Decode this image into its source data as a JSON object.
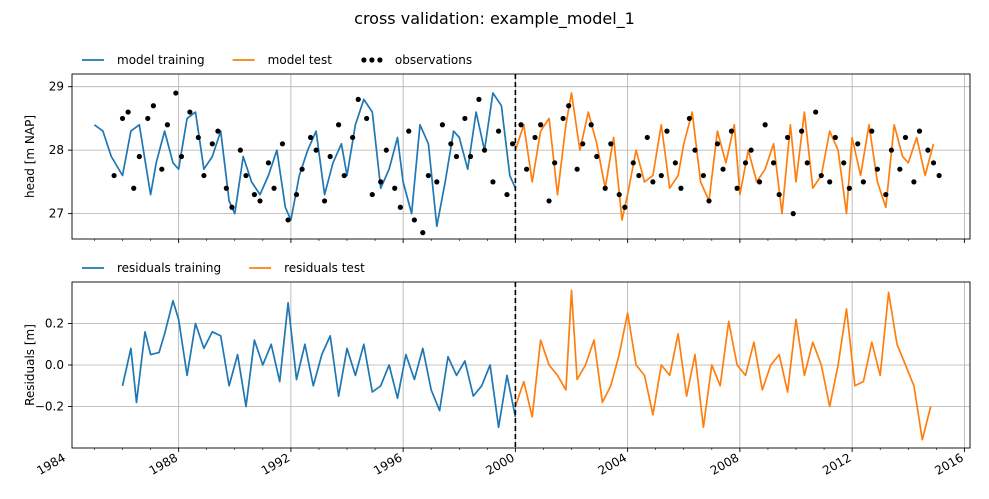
{
  "figure": {
    "title": "cross validation: example_model_1"
  },
  "chart_data": [
    {
      "type": "line",
      "panel": "top",
      "ylabel": "head [m NAP]",
      "xlabel": "",
      "xlim": [
        1984.2,
        2016.2
      ],
      "ylim": [
        26.6,
        29.2
      ],
      "yticks": [
        27,
        28,
        29
      ],
      "grid": true,
      "legend": "top-left, outside",
      "split_year": 2000,
      "series": [
        {
          "name": "model training",
          "color": "#1f77b4",
          "style": "line",
          "x": [
            1985.0,
            1985.3,
            1985.6,
            1986.0,
            1986.3,
            1986.6,
            1987.0,
            1987.2,
            1987.5,
            1987.8,
            1988.0,
            1988.3,
            1988.6,
            1988.9,
            1989.2,
            1989.5,
            1989.8,
            1990.0,
            1990.3,
            1990.6,
            1990.9,
            1991.2,
            1991.5,
            1991.8,
            1992.0,
            1992.3,
            1992.6,
            1992.9,
            1993.2,
            1993.5,
            1993.8,
            1994.0,
            1994.3,
            1994.6,
            1994.9,
            1995.2,
            1995.5,
            1995.8,
            1996.0,
            1996.3,
            1996.6,
            1996.9,
            1997.2,
            1997.5,
            1997.8,
            1998.0,
            1998.3,
            1998.6,
            1998.9,
            1999.2,
            1999.5,
            1999.8,
            2000.0
          ],
          "y": [
            28.4,
            28.3,
            27.9,
            27.6,
            28.3,
            28.4,
            27.3,
            27.8,
            28.3,
            27.8,
            27.7,
            28.5,
            28.6,
            27.7,
            27.9,
            28.3,
            27.2,
            27.0,
            27.9,
            27.5,
            27.3,
            27.6,
            28.0,
            27.1,
            26.9,
            27.6,
            28.0,
            28.3,
            27.3,
            27.8,
            28.1,
            27.6,
            28.4,
            28.8,
            28.6,
            27.4,
            27.7,
            28.2,
            27.5,
            27.0,
            28.4,
            28.1,
            26.8,
            27.5,
            28.3,
            28.2,
            27.7,
            28.6,
            28.0,
            28.9,
            28.7,
            27.6,
            27.4
          ]
        },
        {
          "name": "model test",
          "color": "#ff7f0e",
          "style": "line",
          "x": [
            2000.0,
            2000.3,
            2000.6,
            2000.9,
            2001.2,
            2001.5,
            2001.8,
            2002.0,
            2002.3,
            2002.6,
            2002.9,
            2003.2,
            2003.5,
            2003.8,
            2004.0,
            2004.3,
            2004.6,
            2004.9,
            2005.2,
            2005.5,
            2005.8,
            2006.0,
            2006.3,
            2006.6,
            2006.9,
            2007.2,
            2007.5,
            2007.8,
            2008.0,
            2008.3,
            2008.6,
            2008.9,
            2009.2,
            2009.5,
            2009.8,
            2010.0,
            2010.3,
            2010.6,
            2010.9,
            2011.2,
            2011.5,
            2011.8,
            2012.0,
            2012.3,
            2012.6,
            2012.9,
            2013.2,
            2013.5,
            2013.8,
            2014.0,
            2014.3,
            2014.6,
            2014.9
          ],
          "y": [
            28.0,
            28.4,
            27.5,
            28.3,
            28.5,
            27.3,
            28.4,
            28.9,
            28.0,
            28.6,
            28.1,
            27.4,
            28.2,
            26.9,
            27.3,
            28.0,
            27.5,
            27.6,
            28.4,
            27.4,
            27.6,
            28.1,
            28.6,
            27.5,
            27.2,
            28.3,
            27.8,
            28.4,
            27.3,
            28.0,
            27.5,
            27.7,
            28.1,
            27.0,
            28.4,
            27.5,
            28.6,
            27.4,
            27.6,
            28.3,
            28.0,
            27.0,
            28.2,
            27.6,
            28.4,
            27.5,
            27.1,
            28.4,
            27.9,
            27.8,
            28.2,
            27.6,
            28.1
          ]
        },
        {
          "name": "observations",
          "color": "#000000",
          "style": "points",
          "x": [
            1985.7,
            1986.0,
            1986.2,
            1986.4,
            1986.6,
            1986.9,
            1987.1,
            1987.4,
            1987.6,
            1987.9,
            1988.1,
            1988.4,
            1988.7,
            1988.9,
            1989.2,
            1989.4,
            1989.7,
            1989.9,
            1990.2,
            1990.4,
            1990.7,
            1990.9,
            1991.2,
            1991.4,
            1991.7,
            1991.9,
            1992.2,
            1992.4,
            1992.7,
            1992.9,
            1993.2,
            1993.4,
            1993.7,
            1993.9,
            1994.2,
            1994.4,
            1994.7,
            1994.9,
            1995.2,
            1995.4,
            1995.7,
            1995.9,
            1996.2,
            1996.4,
            1996.7,
            1996.9,
            1997.2,
            1997.4,
            1997.7,
            1997.9,
            1998.2,
            1998.4,
            1998.7,
            1998.9,
            1999.2,
            1999.4,
            1999.7,
            1999.9,
            2000.2,
            2000.4,
            2000.7,
            2000.9,
            2001.2,
            2001.4,
            2001.7,
            2001.9,
            2002.2,
            2002.4,
            2002.7,
            2002.9,
            2003.2,
            2003.4,
            2003.7,
            2003.9,
            2004.2,
            2004.4,
            2004.7,
            2004.9,
            2005.2,
            2005.4,
            2005.7,
            2005.9,
            2006.2,
            2006.4,
            2006.7,
            2006.9,
            2007.2,
            2007.4,
            2007.7,
            2007.9,
            2008.2,
            2008.4,
            2008.7,
            2008.9,
            2009.2,
            2009.4,
            2009.7,
            2009.9,
            2010.2,
            2010.4,
            2010.7,
            2010.9,
            2011.2,
            2011.4,
            2011.7,
            2011.9,
            2012.2,
            2012.4,
            2012.7,
            2012.9,
            2013.2,
            2013.4,
            2013.7,
            2013.9,
            2014.2,
            2014.4,
            2014.7,
            2014.9,
            2015.1
          ],
          "y": [
            27.6,
            28.5,
            28.6,
            27.4,
            27.9,
            28.5,
            28.7,
            27.7,
            28.4,
            28.9,
            27.9,
            28.6,
            28.2,
            27.6,
            28.1,
            28.3,
            27.4,
            27.1,
            28.0,
            27.6,
            27.3,
            27.2,
            27.8,
            27.4,
            28.1,
            26.9,
            27.3,
            27.7,
            28.2,
            28.0,
            27.2,
            27.9,
            28.4,
            27.6,
            28.2,
            28.8,
            28.5,
            27.3,
            27.5,
            28.0,
            27.4,
            27.1,
            28.3,
            26.9,
            26.7,
            27.6,
            27.5,
            28.4,
            28.1,
            27.9,
            28.5,
            27.9,
            28.8,
            28.0,
            27.5,
            28.3,
            27.3,
            28.1,
            28.4,
            27.7,
            28.2,
            28.4,
            27.2,
            27.8,
            28.5,
            28.7,
            27.7,
            28.1,
            28.4,
            27.9,
            27.4,
            28.1,
            27.3,
            27.1,
            27.8,
            27.6,
            28.2,
            27.5,
            27.6,
            28.3,
            27.8,
            27.4,
            28.5,
            28.0,
            27.6,
            27.2,
            28.1,
            27.7,
            28.3,
            27.4,
            27.8,
            28.0,
            27.5,
            28.4,
            27.8,
            27.3,
            28.2,
            27.0,
            28.3,
            27.8,
            28.6,
            27.6,
            27.5,
            28.2,
            27.8,
            27.4,
            28.1,
            27.5,
            28.3,
            27.7,
            27.3,
            28.0,
            27.7,
            28.2,
            27.5,
            28.3,
            28.0,
            27.8,
            27.6
          ]
        }
      ]
    },
    {
      "type": "line",
      "panel": "bottom",
      "ylabel": "Residuals [m]",
      "xlabel": "",
      "xlim": [
        1984.2,
        2016.2
      ],
      "ylim": [
        -0.4,
        0.4
      ],
      "yticks": [
        -0.2,
        0.0,
        0.2
      ],
      "ytick_labels": [
        "−0.2",
        "0.0",
        "0.2"
      ],
      "xticks": [
        1984,
        1988,
        1992,
        1996,
        2000,
        2004,
        2008,
        2012,
        2016
      ],
      "xtick_labels": [
        "1984",
        "1988",
        "1992",
        "1996",
        "2000",
        "2004",
        "2008",
        "2012",
        "2016"
      ],
      "grid": true,
      "legend": "top-left, outside",
      "split_year": 2000,
      "series": [
        {
          "name": "residuals training",
          "color": "#1f77b4",
          "x": [
            1986.0,
            1986.3,
            1986.5,
            1986.8,
            1987.0,
            1987.3,
            1987.5,
            1987.8,
            1988.0,
            1988.3,
            1988.6,
            1988.9,
            1989.2,
            1989.5,
            1989.8,
            1990.1,
            1990.4,
            1990.7,
            1991.0,
            1991.3,
            1991.6,
            1991.9,
            1992.2,
            1992.5,
            1992.8,
            1993.1,
            1993.4,
            1993.7,
            1994.0,
            1994.3,
            1994.6,
            1994.9,
            1995.2,
            1995.5,
            1995.8,
            1996.1,
            1996.4,
            1996.7,
            1997.0,
            1997.3,
            1997.6,
            1997.9,
            1998.2,
            1998.5,
            1998.8,
            1999.1,
            1999.4,
            1999.7,
            2000.0
          ],
          "y": [
            -0.1,
            0.08,
            -0.18,
            0.16,
            0.05,
            0.06,
            0.15,
            0.31,
            0.22,
            -0.05,
            0.2,
            0.08,
            0.16,
            0.14,
            -0.1,
            0.05,
            -0.2,
            0.12,
            0.0,
            0.1,
            -0.08,
            0.3,
            -0.07,
            0.1,
            -0.1,
            0.05,
            0.14,
            -0.15,
            0.08,
            -0.05,
            0.1,
            -0.13,
            -0.1,
            0.0,
            -0.16,
            0.05,
            -0.07,
            0.08,
            -0.12,
            -0.22,
            0.04,
            -0.05,
            0.02,
            -0.15,
            -0.1,
            0.0,
            -0.3,
            -0.05,
            -0.25
          ]
        },
        {
          "name": "residuals test",
          "color": "#ff7f0e",
          "x": [
            2000.0,
            2000.3,
            2000.6,
            2000.9,
            2001.2,
            2001.5,
            2001.8,
            2002.0,
            2002.2,
            2002.5,
            2002.8,
            2003.1,
            2003.4,
            2003.7,
            2004.0,
            2004.3,
            2004.6,
            2004.9,
            2005.2,
            2005.5,
            2005.8,
            2006.1,
            2006.4,
            2006.7,
            2007.0,
            2007.3,
            2007.6,
            2007.9,
            2008.2,
            2008.5,
            2008.8,
            2009.1,
            2009.4,
            2009.7,
            2010.0,
            2010.3,
            2010.6,
            2010.9,
            2011.2,
            2011.5,
            2011.8,
            2012.1,
            2012.4,
            2012.7,
            2013.0,
            2013.3,
            2013.6,
            2013.9,
            2014.2,
            2014.5,
            2014.8
          ],
          "y": [
            -0.2,
            -0.08,
            -0.25,
            0.12,
            0.0,
            -0.05,
            -0.12,
            0.36,
            -0.07,
            0.0,
            0.12,
            -0.18,
            -0.1,
            0.05,
            0.25,
            0.0,
            -0.05,
            -0.24,
            0.0,
            -0.05,
            0.15,
            -0.15,
            0.05,
            -0.3,
            0.0,
            -0.1,
            0.21,
            0.0,
            -0.05,
            0.11,
            -0.12,
            0.0,
            0.05,
            -0.13,
            0.22,
            -0.05,
            0.11,
            0.0,
            -0.2,
            0.0,
            0.27,
            -0.1,
            -0.08,
            0.11,
            -0.05,
            0.35,
            0.1,
            0.0,
            -0.1,
            -0.36,
            -0.2
          ]
        }
      ]
    }
  ]
}
